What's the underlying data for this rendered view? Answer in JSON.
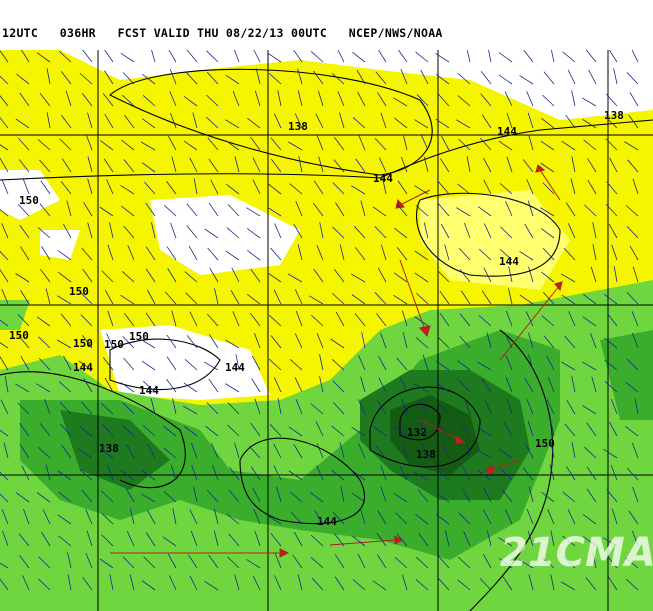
{
  "header": {
    "title": "12UTC   036HR   FCST VALID THU 08/22/13 00UTC   NCEP/NWS/NOAA"
  },
  "colors": {
    "yellow": "#f5f500",
    "light_yellow": "#ffff66",
    "light_green": "#66d63a",
    "green": "#33b02c",
    "dark_green": "#1e7a1e",
    "darkest_green": "#145c14",
    "grid": "#000000",
    "contour": "#000000",
    "wind_barb": "#1a2a8a",
    "border": "#8b2b1a",
    "trajectory": "#b02020"
  },
  "contour_labels": [
    {
      "text": "138"
    },
    {
      "text": "144"
    },
    {
      "text": "144"
    },
    {
      "text": "138"
    },
    {
      "text": "150"
    },
    {
      "text": "144"
    },
    {
      "text": "150"
    },
    {
      "text": "150"
    },
    {
      "text": "150"
    },
    {
      "text": "150"
    },
    {
      "text": "150"
    },
    {
      "text": "144"
    },
    {
      "text": "144"
    },
    {
      "text": "144"
    },
    {
      "text": "132"
    },
    {
      "text": "138"
    },
    {
      "text": "150"
    },
    {
      "text": "138"
    },
    {
      "text": "144"
    }
  ],
  "watermark": "21CMA"
}
